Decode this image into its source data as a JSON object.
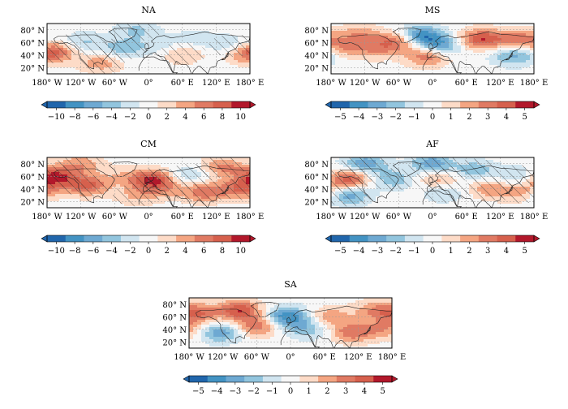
{
  "chart_data": [
    {
      "type": "heatmap",
      "title": "NA",
      "xticks": [
        "180° W",
        "120° W",
        "60° W",
        "0°",
        "60° E",
        "120° E",
        "180° E"
      ],
      "yticks": [
        "20° N",
        "40° N",
        "60° N",
        "80° N"
      ],
      "colorbar_ticks": [
        "−10",
        "−8",
        "−6",
        "−4",
        "−2",
        "0",
        "2",
        "4",
        "6",
        "8",
        "10"
      ],
      "colorbar_range": [
        -10,
        10
      ],
      "hatching": true,
      "anomaly_centers": [
        {
          "lon": -170,
          "lat": 45,
          "value": 7
        },
        {
          "lon": -115,
          "lat": 60,
          "value": -3
        },
        {
          "lon": -85,
          "lat": 28,
          "value": 4
        },
        {
          "lon": -45,
          "lat": 50,
          "value": -4
        },
        {
          "lon": -20,
          "lat": 80,
          "value": -3
        },
        {
          "lon": 20,
          "lat": 55,
          "value": -2
        },
        {
          "lon": 60,
          "lat": 42,
          "value": 3
        },
        {
          "lon": 85,
          "lat": 65,
          "value": -2
        },
        {
          "lon": 150,
          "lat": 55,
          "value": -3
        },
        {
          "lon": 165,
          "lat": 40,
          "value": 2
        }
      ]
    },
    {
      "type": "heatmap",
      "title": "MS",
      "xticks": [
        "180° W",
        "120° W",
        "60° W",
        "0°",
        "60° E",
        "120° E",
        "180° E"
      ],
      "yticks": [
        "20° N",
        "40° N",
        "60° N",
        "80° N"
      ],
      "colorbar_ticks": [
        "−5",
        "−4",
        "−3",
        "−2",
        "−1",
        "0",
        "1",
        "2",
        "3",
        "4",
        "5"
      ],
      "colorbar_range": [
        -5,
        5
      ],
      "hatching": false,
      "anomaly_centers": [
        {
          "lon": -165,
          "lat": 50,
          "value": 3
        },
        {
          "lon": -130,
          "lat": 72,
          "value": 2
        },
        {
          "lon": -100,
          "lat": 50,
          "value": 2
        },
        {
          "lon": -60,
          "lat": 62,
          "value": 3
        },
        {
          "lon": -20,
          "lat": 70,
          "value": -4
        },
        {
          "lon": -10,
          "lat": 38,
          "value": 3
        },
        {
          "lon": 15,
          "lat": 55,
          "value": -3
        },
        {
          "lon": 85,
          "lat": 65,
          "value": 4
        },
        {
          "lon": 150,
          "lat": 65,
          "value": 3
        },
        {
          "lon": 140,
          "lat": 38,
          "value": -2
        },
        {
          "lon": 175,
          "lat": 45,
          "value": -2
        }
      ]
    },
    {
      "type": "heatmap",
      "title": "CM",
      "xticks": [
        "180° W",
        "120° W",
        "60° W",
        "0°",
        "60° E",
        "120° E",
        "180° E"
      ],
      "yticks": [
        "20° N",
        "40° N",
        "60° N",
        "80° N"
      ],
      "colorbar_ticks": [
        "−10",
        "−8",
        "−6",
        "−4",
        "−2",
        "0",
        "2",
        "4",
        "6",
        "8",
        "10"
      ],
      "colorbar_range": [
        -10,
        10
      ],
      "hatching": true,
      "anomaly_centers": [
        {
          "lon": -165,
          "lat": 60,
          "value": 8
        },
        {
          "lon": -110,
          "lat": 45,
          "value": 7
        },
        {
          "lon": -120,
          "lat": 80,
          "value": 4
        },
        {
          "lon": -50,
          "lat": 60,
          "value": 2
        },
        {
          "lon": -20,
          "lat": 30,
          "value": 3
        },
        {
          "lon": 5,
          "lat": 55,
          "value": 8
        },
        {
          "lon": 30,
          "lat": 40,
          "value": 3
        },
        {
          "lon": 75,
          "lat": 62,
          "value": -3
        },
        {
          "lon": 100,
          "lat": 35,
          "value": 6
        },
        {
          "lon": 130,
          "lat": 75,
          "value": 5
        },
        {
          "lon": 165,
          "lat": 40,
          "value": 6
        }
      ]
    },
    {
      "type": "heatmap",
      "title": "AF",
      "xticks": [
        "180° W",
        "120° W",
        "60° W",
        "0°",
        "60° E",
        "120° E",
        "180° E"
      ],
      "yticks": [
        "20° N",
        "40° N",
        "60° N",
        "80° N"
      ],
      "colorbar_ticks": [
        "−5",
        "−4",
        "−3",
        "−2",
        "−1",
        "0",
        "1",
        "2",
        "3",
        "4",
        "5"
      ],
      "colorbar_range": [
        -5,
        5
      ],
      "hatching": true,
      "anomaly_centers": [
        {
          "lon": -150,
          "lat": 55,
          "value": 4
        },
        {
          "lon": -150,
          "lat": 30,
          "value": -3
        },
        {
          "lon": -120,
          "lat": 80,
          "value": -3
        },
        {
          "lon": -70,
          "lat": 55,
          "value": -2
        },
        {
          "lon": 0,
          "lat": 80,
          "value": -3
        },
        {
          "lon": 10,
          "lat": 55,
          "value": 2
        },
        {
          "lon": 20,
          "lat": 35,
          "value": -1.5
        },
        {
          "lon": 75,
          "lat": 70,
          "value": -2
        },
        {
          "lon": 100,
          "lat": 40,
          "value": 2
        },
        {
          "lon": 150,
          "lat": 60,
          "value": -1.5
        },
        {
          "lon": 160,
          "lat": 35,
          "value": 2
        }
      ]
    },
    {
      "type": "heatmap",
      "title": "SA",
      "xticks": [
        "180° W",
        "120° W",
        "60° W",
        "0°",
        "60° E",
        "120° E",
        "180° E"
      ],
      "yticks": [
        "20° N",
        "40° N",
        "60° N",
        "80° N"
      ],
      "colorbar_ticks": [
        "−5",
        "−4",
        "−3",
        "−2",
        "−1",
        "0",
        "1",
        "2",
        "3",
        "4",
        "5"
      ],
      "colorbar_range": [
        -5,
        5
      ],
      "hatching": false,
      "anomaly_centers": [
        {
          "lon": -165,
          "lat": 65,
          "value": 3
        },
        {
          "lon": -125,
          "lat": 35,
          "value": -3
        },
        {
          "lon": -90,
          "lat": 70,
          "value": 4
        },
        {
          "lon": -60,
          "lat": 45,
          "value": 3
        },
        {
          "lon": -5,
          "lat": 60,
          "value": -4
        },
        {
          "lon": 30,
          "lat": 40,
          "value": -2
        },
        {
          "lon": 70,
          "lat": 60,
          "value": 2
        },
        {
          "lon": 110,
          "lat": 35,
          "value": 3
        },
        {
          "lon": 150,
          "lat": 70,
          "value": 2
        },
        {
          "lon": 170,
          "lat": 40,
          "value": 2
        }
      ]
    }
  ]
}
